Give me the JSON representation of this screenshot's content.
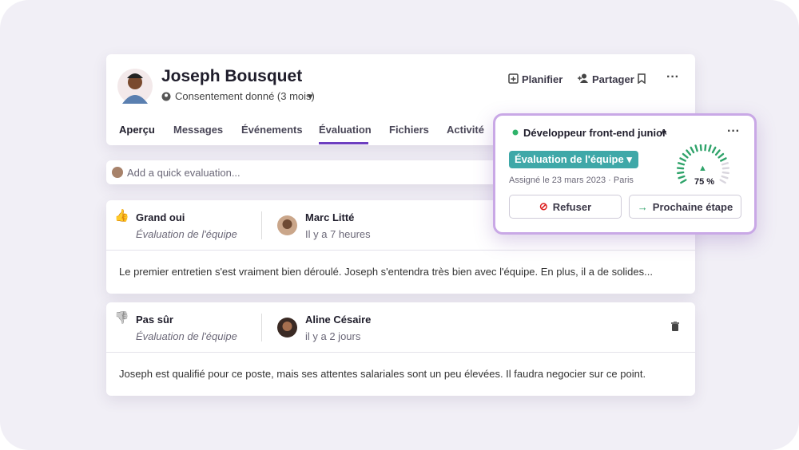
{
  "header": {
    "name": "Joseph Bousquet",
    "consent": "Consentement donné (3 mois)",
    "actions": [
      "Planifier",
      "Partager"
    ]
  },
  "tabs": [
    "Aperçu",
    "Messages",
    "Événements",
    "Évaluation",
    "Fichiers",
    "Activité"
  ],
  "quick_evaluation": {
    "placeholder": "Add a quick evaluation..."
  },
  "evaluations": [
    {
      "verdict": "Grand oui",
      "type": "Évaluation de l'équipe",
      "author": "Marc Litté",
      "time": "Il y a 7 heures",
      "comment": "Le premier entretien s'est vraiment bien déroulé. Joseph s'entendra très bien avec l'équipe. En plus, il a de solides..."
    },
    {
      "verdict": "Pas sûr",
      "type": "Évaluation de l'équipe",
      "author": "Aline Césaire",
      "time": "il y a 2 jours",
      "comment": "Joseph est qualifié pour ce poste, mais ses attentes salariales sont un peu élevées. Il faudra negocier sur ce point."
    }
  ],
  "popup": {
    "job": "Développeur front-end junior",
    "stage": "Évaluation de l'équipe",
    "assigned": "Assigné le 23 mars 2023",
    "location": "Paris",
    "score": {
      "value": 75,
      "label": "75 %"
    },
    "buttons": [
      "Refuser",
      "Prochaine étape"
    ]
  }
}
